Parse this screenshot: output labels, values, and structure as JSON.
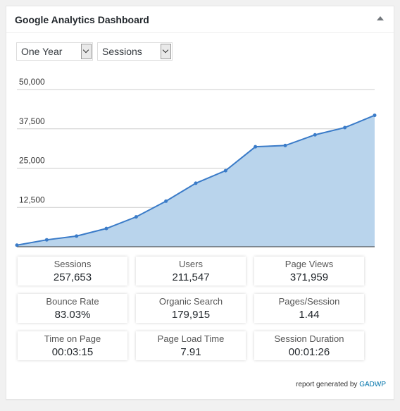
{
  "widget": {
    "title": "Google Analytics Dashboard"
  },
  "filters": {
    "period": "One Year",
    "metric": "Sessions"
  },
  "chart_data": {
    "type": "area",
    "ylim": [
      0,
      50000
    ],
    "yticks": [
      "12,500",
      "25,000",
      "37,500",
      "50,000"
    ],
    "ytick_values": [
      12500,
      25000,
      37500,
      50000
    ],
    "values": [
      500,
      2200,
      3400,
      5800,
      9500,
      14500,
      20200,
      24200,
      31800,
      32200,
      35600,
      37900,
      41800
    ],
    "color": "#3a7bc8",
    "fill": "#b9d4ec"
  },
  "metrics": [
    {
      "label": "Sessions",
      "value": "257,653"
    },
    {
      "label": "Users",
      "value": "211,547"
    },
    {
      "label": "Page Views",
      "value": "371,959"
    },
    {
      "label": "Bounce Rate",
      "value": "83.03%"
    },
    {
      "label": "Organic Search",
      "value": "179,915"
    },
    {
      "label": "Pages/Session",
      "value": "1.44"
    },
    {
      "label": "Time on Page",
      "value": "00:03:15"
    },
    {
      "label": "Page Load Time",
      "value": "7.91"
    },
    {
      "label": "Session Duration",
      "value": "00:01:26"
    }
  ],
  "footer": {
    "text": "report generated by ",
    "link": "GADWP"
  }
}
